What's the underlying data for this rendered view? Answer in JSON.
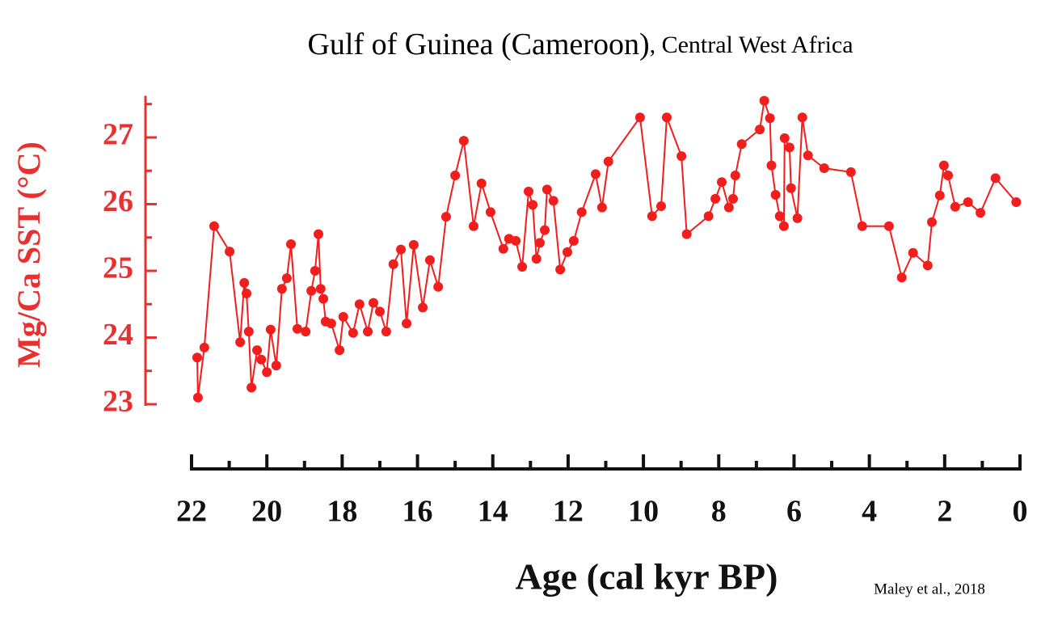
{
  "chart_data": {
    "type": "line",
    "title": "Gulf of Guinea (Cameroon)",
    "subtitle": ", Central West Africa",
    "xlabel": "Age (cal kyr BP)",
    "ylabel": "Mg/Ca SST (°C)",
    "credit": "Maley et al., 2018",
    "color": "#f21d1d",
    "axis_color": "#e8302f",
    "markers": true,
    "x": [
      21.85,
      21.83,
      21.66,
      21.4,
      20.99,
      20.71,
      20.6,
      20.54,
      20.48,
      20.41,
      20.26,
      20.15,
      20.0,
      19.9,
      19.75,
      19.6,
      19.47,
      19.36,
      19.19,
      18.97,
      18.82,
      18.72,
      18.63,
      18.57,
      18.5,
      18.44,
      18.29,
      18.07,
      17.97,
      17.71,
      17.54,
      17.32,
      17.17,
      17.0,
      16.83,
      16.64,
      16.44,
      16.29,
      16.1,
      15.86,
      15.67,
      15.45,
      15.24,
      15.0,
      14.77,
      14.51,
      14.3,
      14.06,
      13.72,
      13.57,
      13.39,
      13.22,
      13.05,
      12.94,
      12.84,
      12.75,
      12.62,
      12.56,
      12.39,
      12.21,
      12.02,
      11.85,
      11.64,
      11.27,
      11.1,
      10.93,
      10.09,
      9.77,
      9.53,
      9.38,
      8.99,
      8.85,
      8.27,
      8.09,
      7.92,
      7.73,
      7.62,
      7.56,
      7.39,
      6.91,
      6.79,
      6.64,
      6.6,
      6.49,
      6.38,
      6.27,
      6.25,
      6.12,
      6.08,
      5.91,
      5.78,
      5.63,
      5.2,
      4.49,
      4.19,
      3.48,
      3.14,
      2.84,
      2.45,
      2.34,
      2.13,
      2.02,
      1.91,
      1.72,
      1.38,
      1.05,
      0.65,
      0.1
    ],
    "values": [
      23.7,
      23.1,
      23.85,
      25.67,
      25.29,
      23.93,
      24.82,
      24.66,
      24.09,
      23.25,
      23.81,
      23.67,
      23.48,
      24.12,
      23.58,
      24.73,
      24.89,
      25.4,
      24.13,
      24.09,
      24.7,
      25.0,
      25.55,
      24.73,
      24.58,
      24.24,
      24.21,
      23.81,
      24.31,
      24.07,
      24.5,
      24.09,
      24.52,
      24.39,
      24.09,
      25.1,
      25.32,
      24.21,
      25.39,
      24.45,
      25.16,
      24.76,
      25.81,
      26.43,
      26.95,
      25.67,
      26.31,
      25.88,
      25.33,
      25.48,
      25.45,
      25.06,
      26.19,
      25.99,
      25.18,
      25.42,
      25.61,
      26.22,
      26.05,
      25.02,
      25.28,
      25.45,
      25.88,
      26.45,
      25.95,
      26.64,
      27.3,
      25.82,
      25.97,
      27.3,
      26.72,
      25.55,
      25.82,
      26.08,
      26.33,
      25.95,
      26.08,
      26.43,
      26.9,
      27.12,
      27.55,
      27.29,
      26.58,
      26.14,
      25.82,
      25.67,
      26.99,
      26.85,
      26.24,
      25.79,
      27.3,
      26.73,
      26.54,
      26.48,
      25.67,
      25.67,
      24.9,
      25.27,
      25.08,
      25.73,
      26.13,
      26.58,
      26.43,
      25.96,
      26.03,
      25.87,
      26.39,
      26.03
    ],
    "xlim": [
      22,
      0
    ],
    "xticks": [
      22,
      20,
      18,
      16,
      14,
      12,
      10,
      8,
      6,
      4,
      2,
      0
    ],
    "xminorticks": [
      21,
      19,
      17,
      15,
      13,
      11,
      9,
      7,
      5,
      3,
      1
    ],
    "ylim": [
      23,
      27.6
    ],
    "yticks": [
      23,
      24,
      25,
      26,
      27
    ],
    "yminorticks": [
      23.5,
      24.5,
      25.5,
      26.5,
      27.5
    ]
  }
}
